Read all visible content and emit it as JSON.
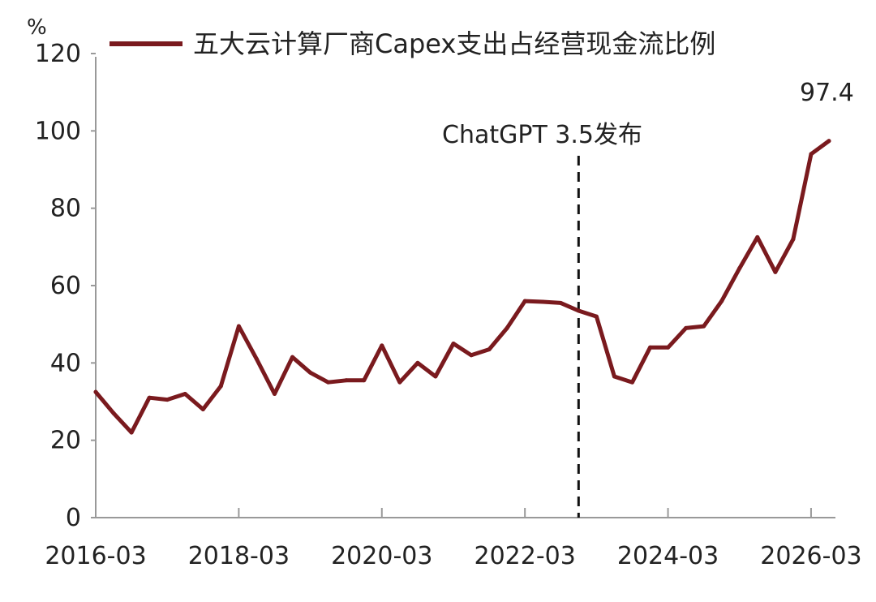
{
  "chart_data": {
    "type": "line",
    "ylabel": "%",
    "ylim": [
      0,
      120
    ],
    "yticks": [
      "0",
      "20",
      "40",
      "60",
      "80",
      "100",
      "120"
    ],
    "xticks": [
      "2016-03",
      "2018-03",
      "2020-03",
      "2022-03",
      "2024-03",
      "2026-03"
    ],
    "legend_position": "top",
    "series": [
      {
        "name": "五大云计算厂商Capex支出占经营现金流比例",
        "color": "#7a1a1e",
        "x": [
          "2016-03",
          "2016-06",
          "2016-09",
          "2016-12",
          "2017-03",
          "2017-06",
          "2017-09",
          "2017-12",
          "2018-03",
          "2018-06",
          "2018-09",
          "2018-12",
          "2019-03",
          "2019-06",
          "2019-09",
          "2019-12",
          "2020-03",
          "2020-06",
          "2020-09",
          "2020-12",
          "2021-03",
          "2021-06",
          "2021-09",
          "2021-12",
          "2022-03",
          "2022-06",
          "2022-09",
          "2022-12",
          "2023-03",
          "2023-06",
          "2023-09",
          "2023-12",
          "2024-03",
          "2024-06",
          "2024-09",
          "2024-12",
          "2025-03",
          "2025-06",
          "2025-09",
          "2025-12",
          "2026-03",
          "2026-06"
        ],
        "values": [
          32.5,
          27,
          22,
          31,
          30.5,
          32,
          28,
          34,
          49.5,
          41,
          32,
          41.5,
          37.5,
          35,
          35.5,
          35.5,
          44.5,
          35,
          40,
          36.5,
          45,
          42,
          43.5,
          49,
          56,
          55.8,
          55.5,
          53.5,
          52,
          36.5,
          35,
          44,
          44,
          49,
          49.5,
          56,
          64.5,
          72.5,
          63.5,
          72,
          94,
          97.4
        ]
      }
    ],
    "annotations": [
      {
        "text": "ChatGPT 3.5发布",
        "x": "2022-12",
        "style": "dashed-vertical-line"
      },
      {
        "text": "97.4",
        "x": "2026-06",
        "y": 97.4
      }
    ]
  }
}
